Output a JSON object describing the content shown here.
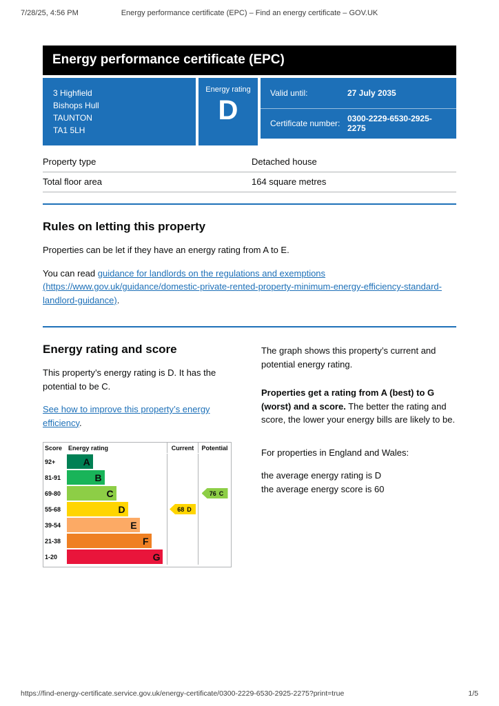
{
  "print_header": {
    "timestamp": "7/28/25, 4:56 PM",
    "title": "Energy performance certificate (EPC) – Find an energy certificate – GOV.UK"
  },
  "banner": {
    "title": "Energy performance certificate (EPC)"
  },
  "summary": {
    "address_lines": [
      "3 Highfield",
      "Bishops Hull",
      "TAUNTON",
      "TA1 5LH"
    ],
    "energy_rating_label": "Energy rating",
    "energy_rating": "D",
    "valid_until_label": "Valid until:",
    "valid_until": "27 July 2035",
    "certificate_number_label": "Certificate number:",
    "certificate_number": "0300-2229-6530-2925-2275"
  },
  "property_details": {
    "rows": [
      {
        "label": "Property type",
        "value": "Detached house"
      },
      {
        "label": "Total floor area",
        "value": "164 square metres"
      }
    ]
  },
  "rules_section": {
    "heading": "Rules on letting this property",
    "para1": "Properties can be let if they have an energy rating from A to E.",
    "para2_prefix": "You can read ",
    "link_text": "guidance for landlords on the regulations and exemptions (https://www.gov.uk/guidance/domestic-private-rented-property-minimum-energy-efficiency-standard-landlord-guidance)",
    "para2_suffix": "."
  },
  "rating_section": {
    "heading": "Energy rating and score",
    "para1": "This property’s energy rating is D. It has the potential to be C.",
    "link_text": "See how to improve this property’s energy efficiency",
    "link_suffix": "."
  },
  "right_column": {
    "para1": "The graph shows this property’s current and potential energy rating.",
    "para2_bold": "Properties get a rating from A (best) to G (worst) and a score.",
    "para2_rest": " The better the rating and score, the lower your energy bills are likely to be.",
    "para3": "For properties in England and Wales:",
    "para4_line1": "the average energy rating is D",
    "para4_line2": "the average energy score is 60"
  },
  "chart_data": {
    "type": "epc-bands",
    "headers": {
      "score": "Score",
      "rating": "Energy rating",
      "current": "Current",
      "potential": "Potential"
    },
    "bands": [
      {
        "score": "92+",
        "letter": "A",
        "color": "#008054"
      },
      {
        "score": "81-91",
        "letter": "B",
        "color": "#19b459"
      },
      {
        "score": "69-80",
        "letter": "C",
        "color": "#8dce46"
      },
      {
        "score": "55-68",
        "letter": "D",
        "color": "#ffd500"
      },
      {
        "score": "39-54",
        "letter": "E",
        "color": "#fcaa65"
      },
      {
        "score": "21-38",
        "letter": "F",
        "color": "#ef8023"
      },
      {
        "score": "1-20",
        "letter": "G",
        "color": "#e9153b"
      }
    ],
    "current": {
      "value": 68,
      "letter": "D",
      "color": "#ffd500"
    },
    "potential": {
      "value": 76,
      "letter": "C",
      "color": "#8dce46"
    }
  },
  "print_footer": {
    "url": "https://find-energy-certificate.service.gov.uk/energy-certificate/0300-2229-6530-2925-2275?print=true",
    "page": "1/5"
  }
}
